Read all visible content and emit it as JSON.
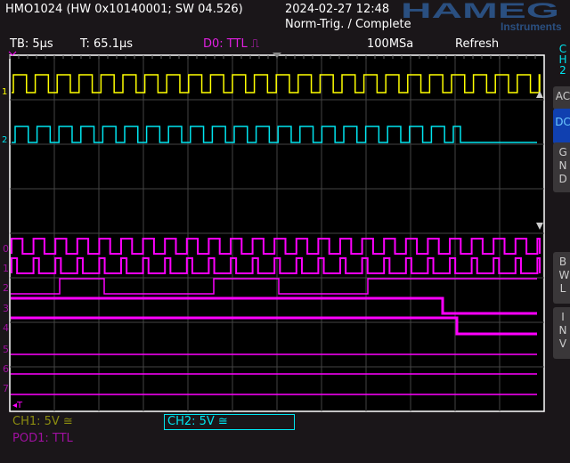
{
  "header": {
    "title": "HMO1024 (HW 0x10140001; SW 04.526)",
    "datetime": "2024-02-27 12:48",
    "trigger_status": "Norm-Trig. / Complete",
    "logo": "HAMEG Instruments"
  },
  "status": {
    "timebase": "TB: 5µs",
    "trigger_time": "T: 65.1µs",
    "trigger_source": "D0: TTL ⎍",
    "sample_rate": "100MSa",
    "mode": "Refresh"
  },
  "side": {
    "channel": "CH2",
    "buttons": [
      {
        "label": "AC",
        "active": false
      },
      {
        "label": "DC",
        "active": true
      },
      {
        "label": "GND",
        "active": false
      },
      {
        "label": "BWL",
        "active": false
      },
      {
        "label": "INV",
        "active": false
      }
    ]
  },
  "digital_labels": [
    "0",
    "1",
    "2",
    "3",
    "4",
    "5",
    "6",
    "7"
  ],
  "trigger_marker": "T",
  "footer": {
    "ch1": "CH1: 5V ≅",
    "ch2": "CH2: 5V ≅",
    "pod1": "POD1: TTL"
  },
  "colors": {
    "ch1": "#ffff00",
    "ch2": "#00e5f0",
    "digital": "#ff00ff",
    "active_button": "#1040b0"
  }
}
